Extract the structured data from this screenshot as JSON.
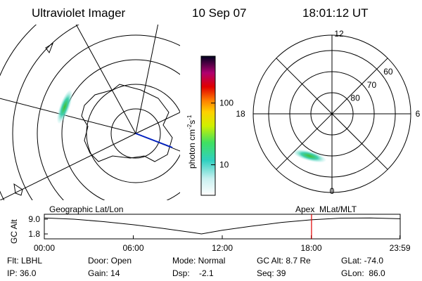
{
  "header": {
    "title": "Ultraviolet Imager",
    "date": "10 Sep 07",
    "time": "18:01:12 UT"
  },
  "colorbar": {
    "label": "photon cm",
    "exp1": "-2",
    "unit2": "s",
    "exp2": "-1",
    "scale": "log",
    "lim": [
      3.2,
      575
    ],
    "ticks": [
      10,
      100
    ]
  },
  "polar": {
    "mlt_labels": [
      "12",
      "18",
      "6",
      "0"
    ],
    "lat_rings": [
      60,
      70,
      80
    ],
    "lat_edge": 52.7
  },
  "chart_data": {
    "type": "line",
    "y_label": "GC Alt",
    "left_label": "Geographic Lat/Lon",
    "right_label": "Apex  MLat/MLT",
    "x": [
      0,
      2,
      4,
      6,
      8,
      10,
      10.6,
      12,
      14,
      16,
      18,
      20,
      22,
      23.98
    ],
    "values": [
      9.6,
      9.0,
      7.8,
      6.3,
      4.5,
      2.5,
      1.8,
      3.6,
      5.6,
      7.4,
      8.7,
      9.5,
      9.6,
      9.2
    ],
    "color": "#000000",
    "marker_x": 18.02,
    "marker_color": "#e00000",
    "xlim": [
      0,
      24
    ],
    "ylim": [
      -0.6,
      11.4
    ],
    "xticks": [
      {
        "value": 0,
        "label": "00:00"
      },
      {
        "value": 6,
        "label": "06:00"
      },
      {
        "value": 12,
        "label": "12:00"
      },
      {
        "value": 18,
        "label": "18:00"
      },
      {
        "value": 23.98,
        "label": "23:59"
      }
    ],
    "yticks": [
      {
        "value": 9,
        "label": "9.0"
      },
      1.8
    ]
  },
  "info": [
    [
      "Flt: LBHL",
      "Door: Open",
      "Mode: Normal",
      "GC Alt: 8.7 Re",
      "GLat: -74.0"
    ],
    [
      "IP: 36.0",
      "Gain: 14",
      "Dsp:    -2.1",
      "Seq: 39",
      "GLon:  86.0"
    ]
  ]
}
